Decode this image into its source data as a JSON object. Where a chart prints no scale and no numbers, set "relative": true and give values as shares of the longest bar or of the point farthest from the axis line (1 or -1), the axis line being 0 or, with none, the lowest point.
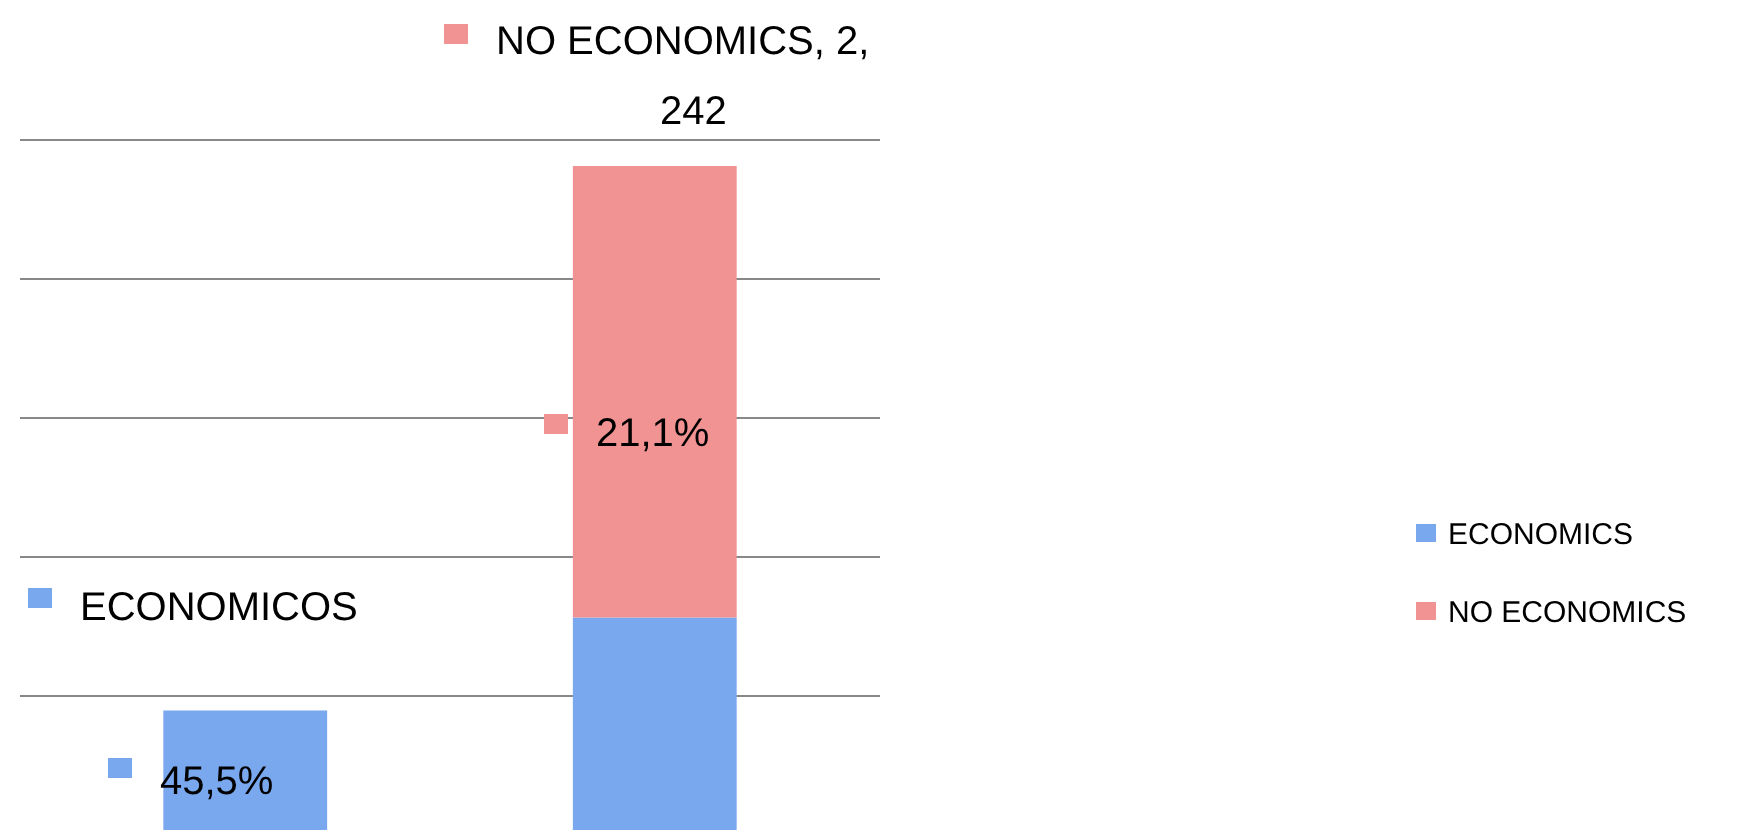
{
  "chart_data": {
    "type": "bar",
    "stacked": true,
    "relative": true,
    "categories": [
      null,
      null
    ],
    "series": [
      {
        "name": "ECONOMICS",
        "color": "#79a8ee",
        "values": [
          0.18,
          0.32
        ]
      },
      {
        "name": "NO ECONOMICS",
        "color": "#f29393",
        "values": [
          null,
          0.68
        ]
      }
    ],
    "annotations": [
      "ECONOMICOS",
      "NO ECONOMICS, 2, 242",
      "45,5%",
      "21,1%"
    ],
    "grid": true,
    "legend": "right"
  }
}
